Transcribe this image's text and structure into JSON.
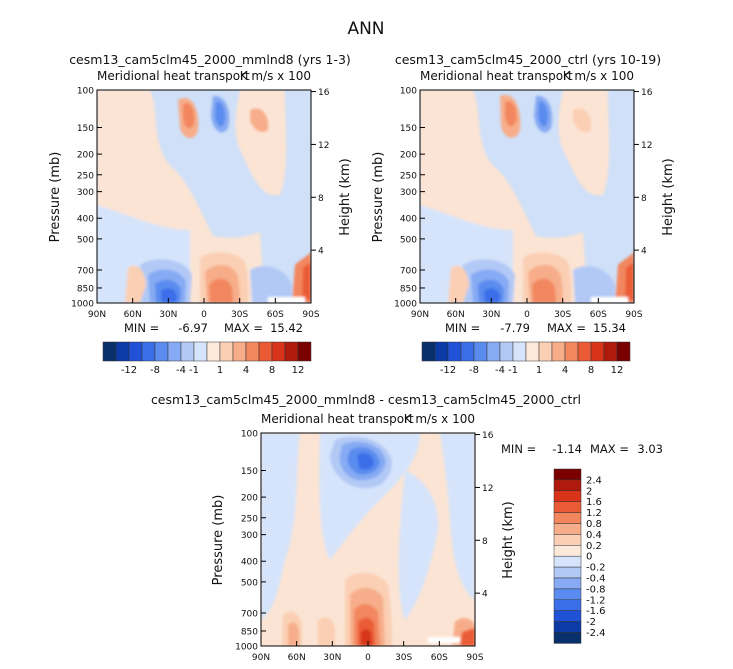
{
  "page_title": "ANN",
  "colors": {
    "negative": [
      "#08306b",
      "#0c3aa7",
      "#1f52d6",
      "#3a6ee8",
      "#5a8cef",
      "#86aaf3",
      "#b2c9f6",
      "#d6e4fb"
    ],
    "positive": [
      "#fde9da",
      "#fbcfb4",
      "#f7ad8a",
      "#f2875e",
      "#ea5b35",
      "#d8341a",
      "#b01a0c",
      "#7a0000"
    ],
    "background": "#ffffff"
  },
  "chart_data": [
    {
      "type": "heatmap",
      "id": "panel-left",
      "title": "cesm13_cam5clm45_2000_mmlnd8 (yrs 1-3)",
      "subtitle": "Meridional heat transport",
      "units": "K m/s x 100",
      "ylabel": "Pressure (mb)",
      "ylabel_right": "Height (km)",
      "x_ticks": [
        "90N",
        "60N",
        "30N",
        "0",
        "30S",
        "60S",
        "90S"
      ],
      "y_ticks": [
        "100",
        "150",
        "200",
        "250",
        "300",
        "400",
        "500",
        "700",
        "850",
        "1000"
      ],
      "right_ticks": [
        "16",
        "12",
        "8",
        "4"
      ],
      "min_label": "MIN =",
      "min_value": "-6.97",
      "max_label": "MAX =",
      "max_value": "15.42",
      "colorbar_labels": [
        "-12",
        "-8",
        "-4",
        "-1",
        "1",
        "4",
        "8",
        "12"
      ]
    },
    {
      "type": "heatmap",
      "id": "panel-right",
      "title": "cesm13_cam5clm45_2000_ctrl (yrs 10-19)",
      "subtitle": "Meridional heat transport",
      "units": "K m/s x 100",
      "ylabel": "Pressure (mb)",
      "ylabel_right": "Height (km)",
      "x_ticks": [
        "90N",
        "60N",
        "30N",
        "0",
        "30S",
        "60S",
        "90S"
      ],
      "y_ticks": [
        "100",
        "150",
        "200",
        "250",
        "300",
        "400",
        "500",
        "700",
        "850",
        "1000"
      ],
      "right_ticks": [
        "16",
        "12",
        "8",
        "4"
      ],
      "min_label": "MIN =",
      "min_value": "-7.79",
      "max_label": "MAX =",
      "max_value": "15.34",
      "colorbar_labels": [
        "-12",
        "-8",
        "-4",
        "-1",
        "1",
        "4",
        "8",
        "12"
      ]
    },
    {
      "type": "heatmap",
      "id": "panel-diff",
      "title": "cesm13_cam5clm45_2000_mmlnd8 - cesm13_cam5clm45_2000_ctrl",
      "subtitle": "Meridional heat transport",
      "units": "K m/s x 100",
      "ylabel": "Pressure (mb)",
      "ylabel_right": "Height (km)",
      "x_ticks": [
        "90N",
        "60N",
        "30N",
        "0",
        "30S",
        "60S",
        "90S"
      ],
      "y_ticks": [
        "100",
        "150",
        "200",
        "250",
        "300",
        "400",
        "500",
        "700",
        "850",
        "1000"
      ],
      "right_ticks": [
        "16",
        "12",
        "8",
        "4"
      ],
      "min_label": "MIN =",
      "min_value": "-1.14",
      "max_label": "MAX =",
      "max_value": "3.03",
      "colorbar_labels": [
        "2.4",
        "2",
        "1.6",
        "1.2",
        "0.8",
        "0.4",
        "0.2",
        "0",
        "-0.2",
        "-0.4",
        "-0.8",
        "-1.2",
        "-1.6",
        "-2",
        "-2.4"
      ]
    }
  ]
}
